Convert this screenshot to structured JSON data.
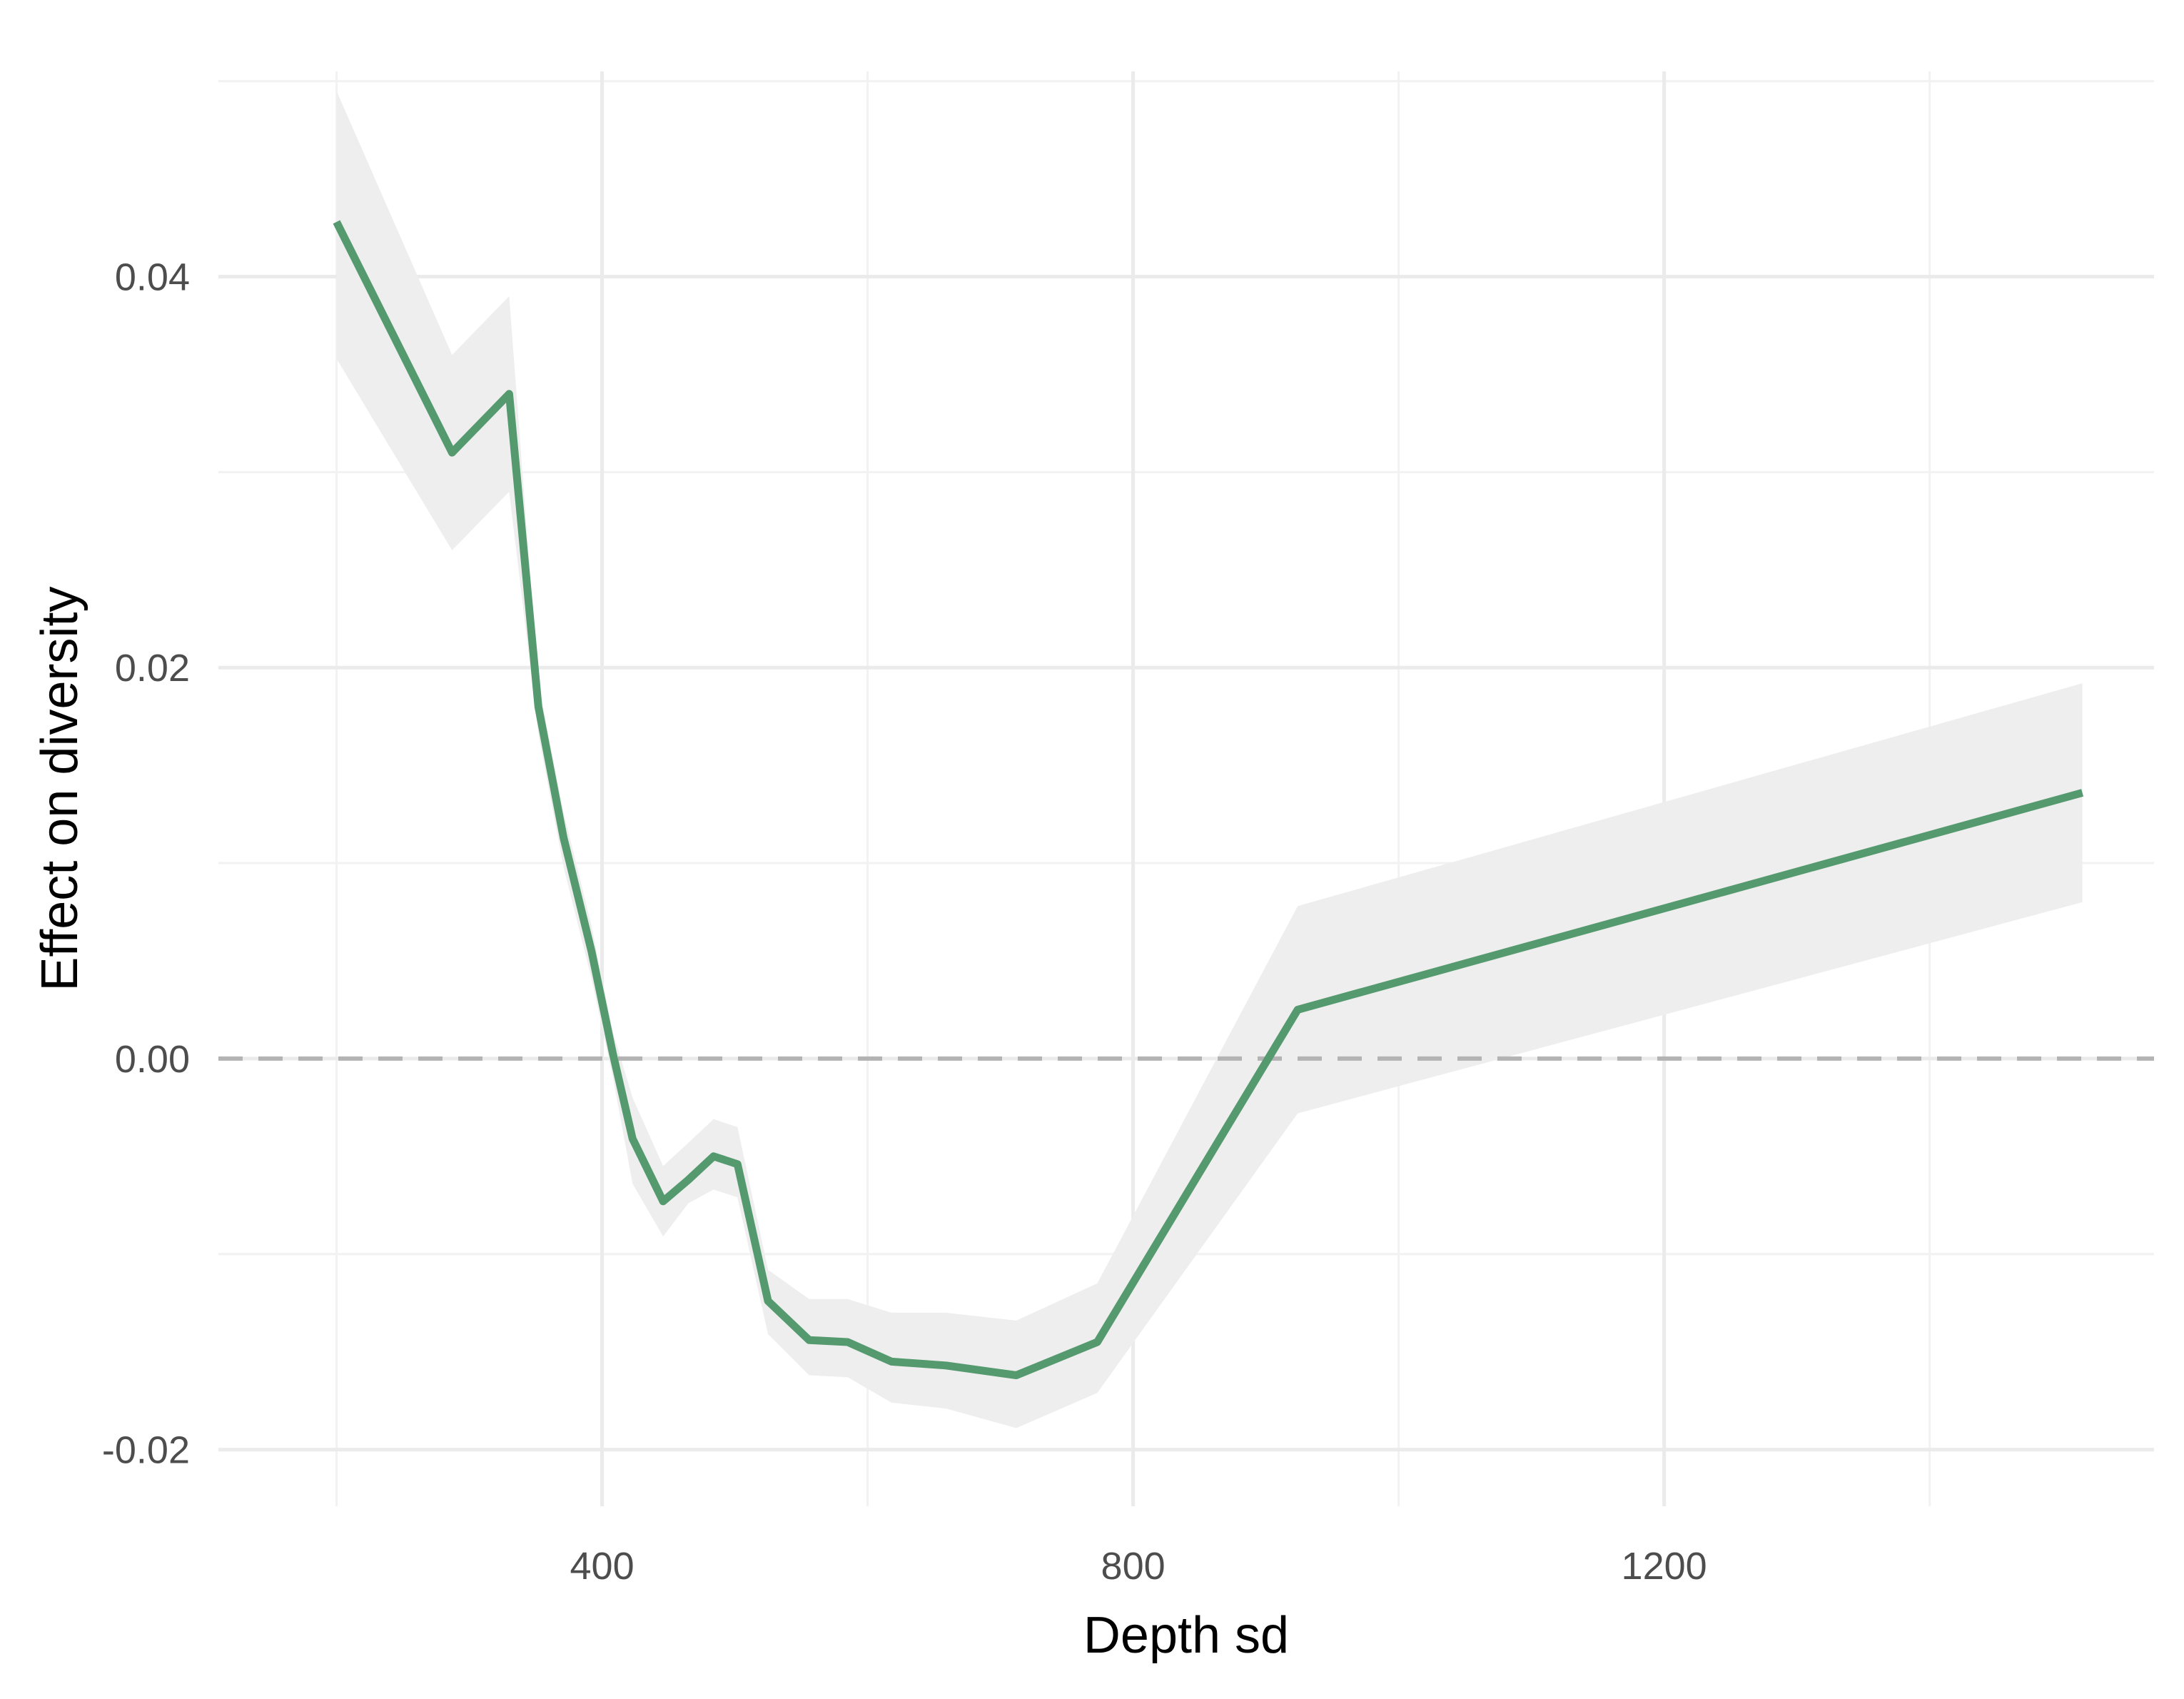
{
  "chart_data": {
    "type": "line",
    "title": "",
    "xlabel": "Depth sd",
    "ylabel": "Effect on diversity",
    "xlim": [
      111,
      1569
    ],
    "ylim": [
      -0.0229,
      0.0505
    ],
    "x_ticks": [
      400,
      800,
      1200
    ],
    "x_tick_labels": [
      "400",
      "800",
      "1200"
    ],
    "x_minor_ticks": [
      200,
      600,
      1000,
      1400
    ],
    "y_ticks": [
      -0.02,
      0.0,
      0.02,
      0.04
    ],
    "y_tick_labels": [
      "-0.02",
      "0.00",
      "0.02",
      "0.04"
    ],
    "y_minor_ticks": [
      -0.01,
      0.01,
      0.03,
      0.05
    ],
    "grid": true,
    "reference_line": {
      "y": 0.0,
      "style": "dashed"
    },
    "series": [
      {
        "x": [
          200,
          287,
          330,
          352,
          371,
          392,
          408,
          423,
          446,
          465,
          484,
          502,
          525,
          556,
          585,
          618,
          659,
          712,
          773,
          924,
          1515
        ],
        "y": [
          0.0428,
          0.031,
          0.034,
          0.018,
          0.0113,
          0.0055,
          0.0003,
          -0.0041,
          -0.0073,
          -0.0062,
          -0.005,
          -0.0054,
          -0.0124,
          -0.0144,
          -0.0145,
          -0.0155,
          -0.0157,
          -0.0162,
          -0.0145,
          0.0025,
          0.0136
        ],
        "lower": [
          0.0358,
          0.026,
          0.029,
          0.0166,
          0.0098,
          0.0041,
          -0.0009,
          -0.0064,
          -0.0091,
          -0.0074,
          -0.0067,
          -0.0071,
          -0.0141,
          -0.0162,
          -0.0163,
          -0.0176,
          -0.0179,
          -0.0189,
          -0.0171,
          -0.0028,
          0.008
        ],
        "upper": [
          0.0495,
          0.036,
          0.039,
          0.0192,
          0.0126,
          0.0068,
          0.0014,
          -0.002,
          -0.0055,
          -0.0043,
          -0.0031,
          -0.0035,
          -0.0108,
          -0.0123,
          -0.0123,
          -0.013,
          -0.013,
          -0.0134,
          -0.0115,
          0.0078,
          0.0192
        ]
      }
    ],
    "colors": {
      "line": "#559a6e",
      "ribbon": "#eeeeee",
      "grid_major": "#ebebeb",
      "grid_minor": "#f2f2f2",
      "reference_line": "#b3b3b3"
    }
  }
}
